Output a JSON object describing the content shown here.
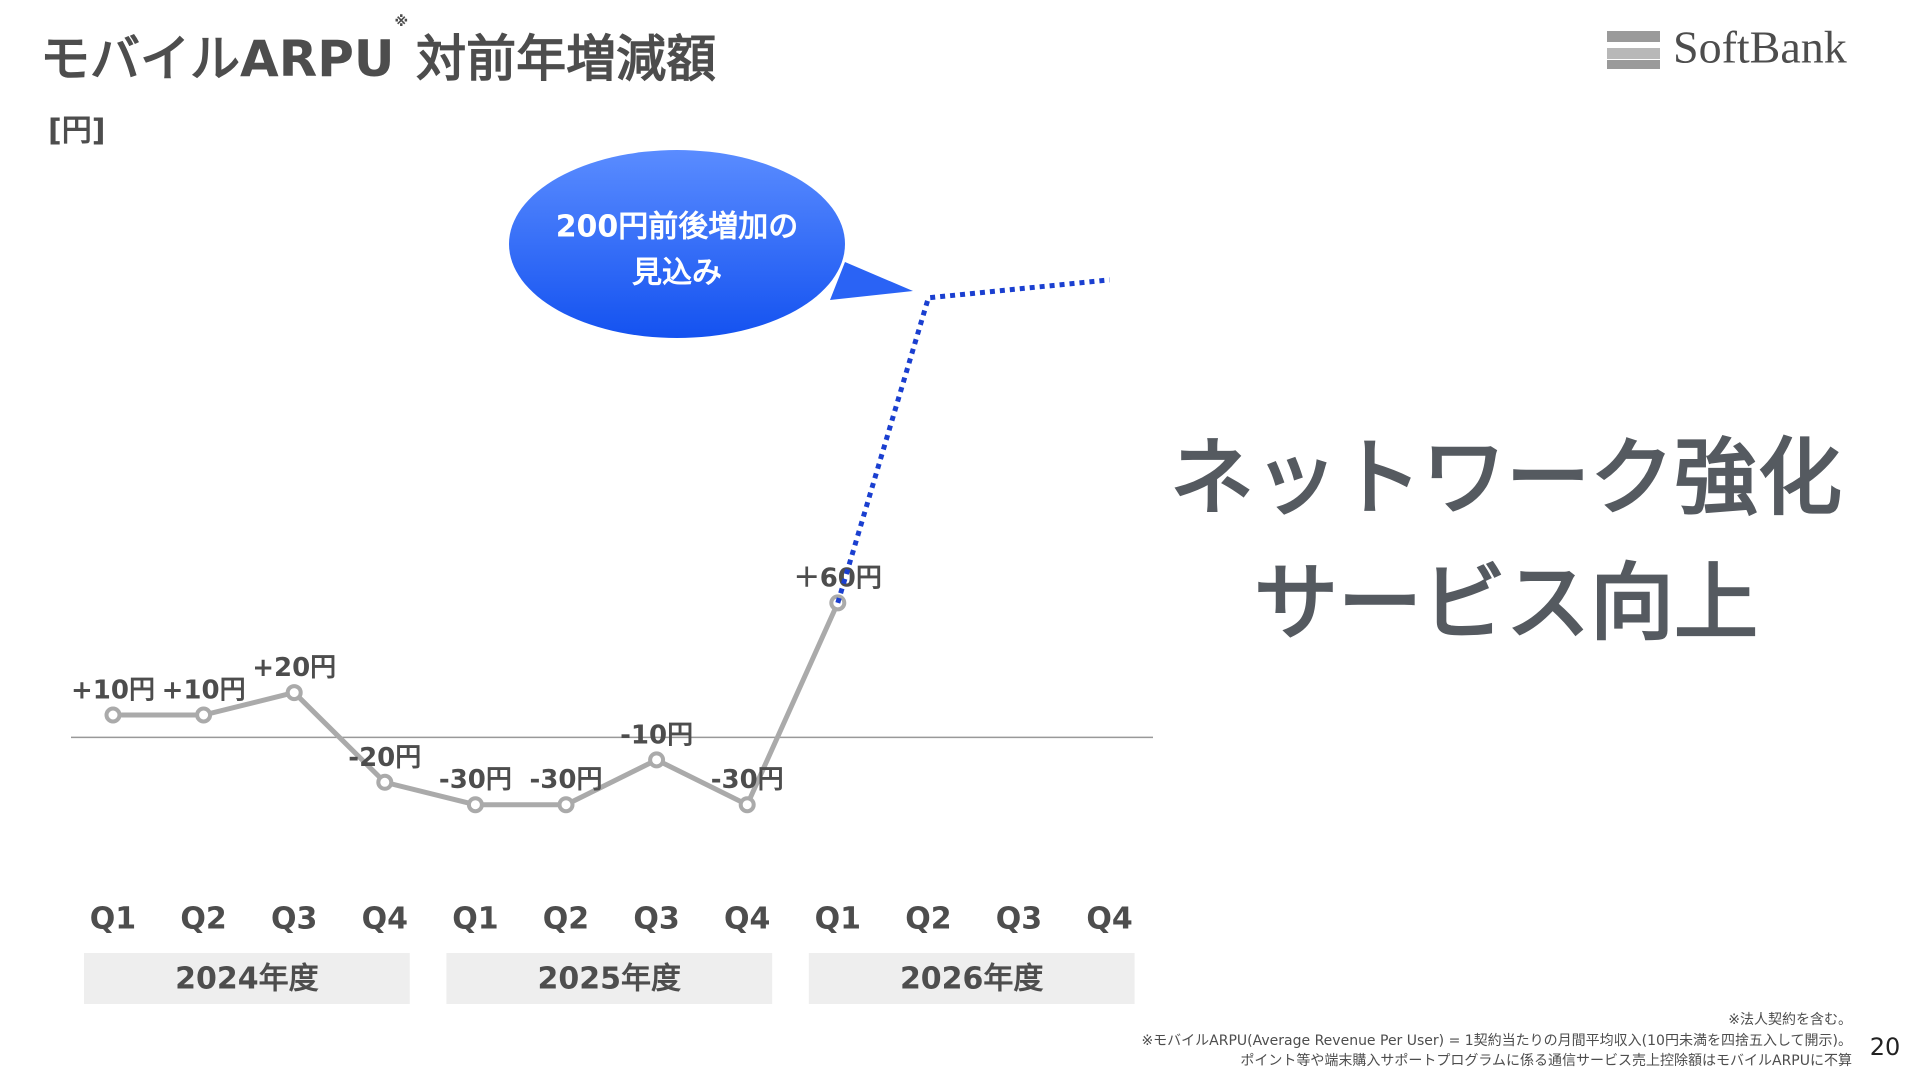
{
  "header": {
    "title": "モバイルARPU",
    "title_mark": "※",
    "title_suffix": "対前年増減額",
    "logo": "SoftBank",
    "page_number": "20"
  },
  "chart_data": {
    "type": "line",
    "y_label": "[円]",
    "categories": [
      "Q1",
      "Q2",
      "Q3",
      "Q4",
      "Q1",
      "Q2",
      "Q3",
      "Q4",
      "Q1",
      "Q2",
      "Q3",
      "Q4"
    ],
    "groups": [
      "2024年度",
      "2025年度",
      "2026年度"
    ],
    "series": [
      {
        "color": "#aaaaaa",
        "values": [
          10,
          10,
          20,
          -20,
          -30,
          -30,
          -10,
          -30,
          60,
          null,
          null,
          null
        ],
        "value_labels": [
          "+10円",
          "+10円",
          "+20円",
          "-20円",
          "-30円",
          "-30円",
          "-10円",
          "-30円",
          "＋60円",
          null,
          null,
          null
        ]
      },
      {
        "color": "#1a3fd0",
        "style": "dotted",
        "values": [
          null,
          null,
          null,
          null,
          null,
          null,
          null,
          null,
          60,
          196,
          200,
          204
        ]
      }
    ],
    "ylim": [
      -60,
      220
    ],
    "callout": [
      "200円前後増加の",
      "見込み"
    ]
  },
  "message": [
    "ネットワーク強化",
    "サービス向上"
  ],
  "footnotes": [
    "※法人契約を含む。",
    "※モバイルARPU(Average Revenue Per User) = 1契約当たりの月間平均収入(10円未満を四捨五入して開示)。",
    "ポイント等や端末購入サポートプログラムに係る通信サービス売上控除額はモバイルARPUに不算"
  ]
}
